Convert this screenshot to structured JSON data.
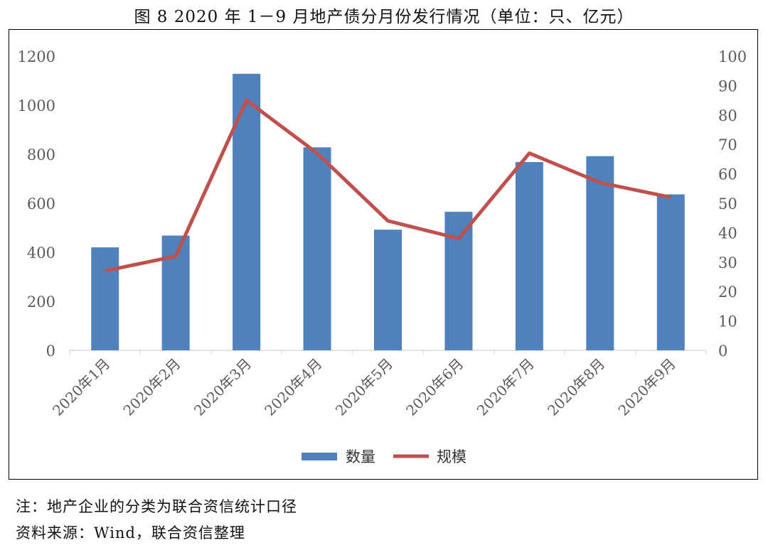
{
  "title": "图 8   2020 年 1－9 月地产债分月份发行情况（单位：只、亿元）",
  "notes": {
    "note": "注：地产企业的分类为联合资信统计口径",
    "source": "资料来源：Wind，联合资信整理"
  },
  "colors": {
    "bar": "#4f81bd",
    "line": "#c0504d",
    "axis": "#d9d9d9",
    "text": "#595959"
  },
  "chart_data": {
    "type": "bar+line",
    "categories": [
      "2020年1月",
      "2020年2月",
      "2020年3月",
      "2020年4月",
      "2020年5月",
      "2020年6月",
      "2020年7月",
      "2020年8月",
      "2020年9月"
    ],
    "series": [
      {
        "name": "数量",
        "type": "bar",
        "axis": "left",
        "values": [
          420,
          468,
          1128,
          828,
          492,
          565,
          768,
          792,
          636
        ]
      },
      {
        "name": "规模",
        "type": "line",
        "axis": "right",
        "values": [
          27,
          32,
          85,
          67,
          44,
          38,
          67,
          57,
          52
        ]
      }
    ],
    "y_left": {
      "min": 0,
      "max": 1200,
      "ticks": [
        0,
        200,
        400,
        600,
        800,
        1000,
        1200
      ]
    },
    "y_right": {
      "min": 0,
      "max": 100,
      "ticks": [
        0,
        10,
        20,
        30,
        40,
        50,
        60,
        70,
        80,
        90,
        100
      ]
    },
    "grid": false,
    "legend": "bottom-center",
    "xlabel": "",
    "ylabel": ""
  }
}
